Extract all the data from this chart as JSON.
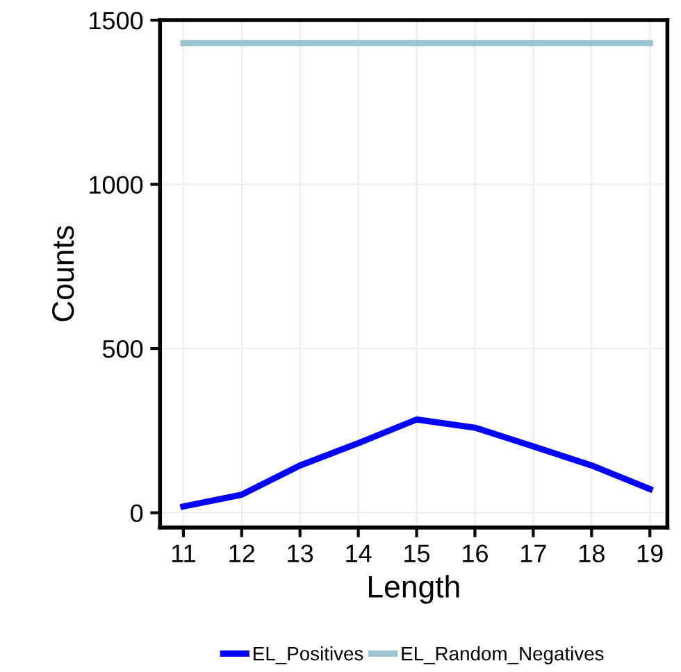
{
  "chart_data": {
    "type": "line",
    "xlabel": "Length",
    "ylabel": "Counts",
    "x": [
      11,
      12,
      13,
      14,
      15,
      16,
      17,
      18,
      19
    ],
    "series": [
      {
        "name": "EL_Positives",
        "color": "#0000ff",
        "values": [
          19,
          55,
          144,
          212,
          284,
          259,
          202,
          144,
          72
        ]
      },
      {
        "name": "EL_Random_Negatives",
        "color": "#9ac5d1",
        "values": [
          1430,
          1430,
          1430,
          1430,
          1430,
          1430,
          1430,
          1430,
          1430
        ]
      }
    ],
    "xlim": [
      10.6,
      19.3
    ],
    "xticks": [
      11,
      12,
      13,
      14,
      15,
      16,
      17,
      18,
      19
    ],
    "ylim": [
      -45,
      1500
    ],
    "yticks": [
      0,
      500,
      1000,
      1500
    ],
    "grid": true,
    "legend": "bottom",
    "marker": "none",
    "line_style": "solid"
  }
}
